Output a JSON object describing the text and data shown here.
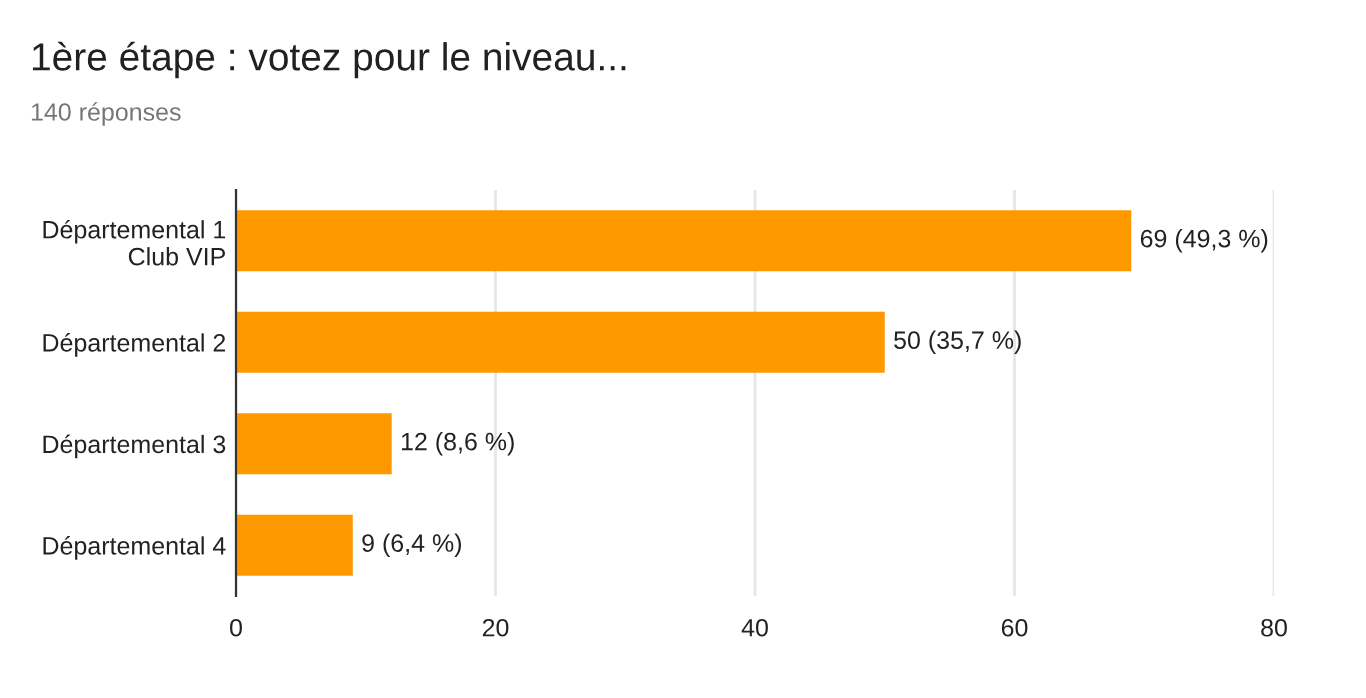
{
  "chart_data": {
    "type": "bar",
    "orientation": "horizontal",
    "title": "1ère étape : votez pour le niveau...",
    "subtitle": "140 réponses",
    "categories": [
      "Départemental 1\nClub VIP",
      "Départemental 2",
      "Départemental 3",
      "Départemental 4"
    ],
    "values": [
      69,
      50,
      12,
      9
    ],
    "value_labels": [
      "69 (49,3 %)",
      "50 (35,7 %)",
      "12 (8,6 %)",
      "9 (6,4 %)"
    ],
    "color": "#ff9900",
    "xlim": [
      0,
      80
    ],
    "xticks": [
      0,
      20,
      40,
      60,
      80
    ],
    "grid": "x",
    "legend": false
  }
}
